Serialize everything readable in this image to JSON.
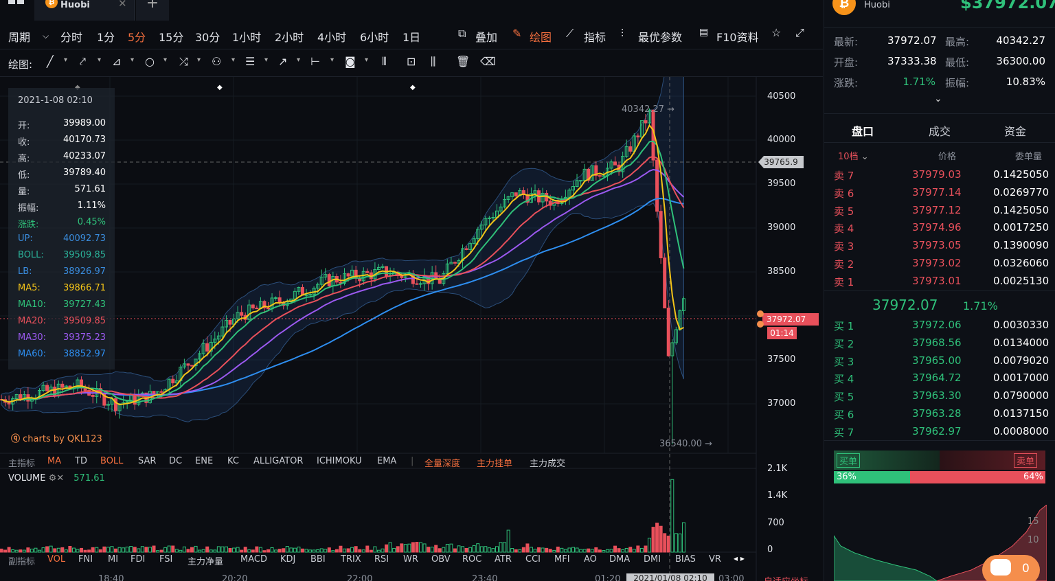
{
  "tabs": {
    "active": "Huobi",
    "coin_symbol": "₿"
  },
  "period": {
    "label": "周期",
    "items": [
      "分时",
      "1分",
      "5分",
      "15分",
      "30分",
      "1小时",
      "2小时",
      "4小时",
      "6小时",
      "1日"
    ],
    "active": "5分",
    "tools": [
      "叠加",
      "绘图",
      "指标",
      "最优参数",
      "F10资料"
    ]
  },
  "draw": {
    "label": "绘图:"
  },
  "info": {
    "datetime": "2021-1-08 02:10",
    "rows": [
      {
        "k": "开:",
        "v": "39989.00",
        "c": "#c9ccd3"
      },
      {
        "k": "收:",
        "v": "40170.73",
        "c": "#c9ccd3"
      },
      {
        "k": "高:",
        "v": "40233.07",
        "c": "#c9ccd3"
      },
      {
        "k": "低:",
        "v": "39789.40",
        "c": "#c9ccd3"
      },
      {
        "k": "量:",
        "v": "571.61",
        "c": "#c9ccd3"
      },
      {
        "k": "振幅:",
        "v": "1.11%",
        "c": "#c9ccd3"
      },
      {
        "k": "涨跌:",
        "v": "0.45%",
        "c": "#2fc17a"
      },
      {
        "k": "UP:",
        "v": "40092.73",
        "c": "#3a8dde"
      },
      {
        "k": "BOLL:",
        "v": "39509.85",
        "c": "#2bb39a"
      },
      {
        "k": "LB:",
        "v": "38926.97",
        "c": "#3a8dde"
      },
      {
        "k": "MA5:",
        "v": "39866.71",
        "c": "#f5c518"
      },
      {
        "k": "MA10:",
        "v": "39727.43",
        "c": "#2fc17a"
      },
      {
        "k": "MA20:",
        "v": "39509.85",
        "c": "#e8505b"
      },
      {
        "k": "MA30:",
        "v": "39375.23",
        "c": "#9b59f0"
      },
      {
        "k": "MA60:",
        "v": "38852.97",
        "c": "#2e8ef0"
      }
    ]
  },
  "price_axis": [
    "40500",
    "40000",
    "39500",
    "39000",
    "38500",
    "37500",
    "37000"
  ],
  "marks": {
    "high": "40342.27",
    "low": "36540.00",
    "crosshair": "39765.9",
    "last": "37972.07",
    "countdown": "01:14"
  },
  "watermark": "charts by QKL123",
  "main_indicators": {
    "label": "主指标",
    "items": [
      "MA",
      "TD",
      "BOLL",
      "SAR",
      "DC",
      "ENE",
      "KC",
      "ALLIGATOR",
      "ICHIMOKU",
      "EMA"
    ],
    "extra": [
      "全量深度",
      "主力挂单",
      "主力成交"
    ]
  },
  "volume": {
    "label": "VOLUME",
    "value": "571.61",
    "axis": [
      "2.1K",
      "1.4K",
      "700",
      "0"
    ]
  },
  "sub_indicators": {
    "label": "副指标",
    "items": [
      "VOL",
      "FNI",
      "MI",
      "FDI",
      "FSI",
      "主力净量",
      "MACD",
      "KDJ",
      "BBI",
      "TRIX",
      "RSI",
      "WR",
      "OBV",
      "ROC",
      "ATR",
      "CCI",
      "MFI",
      "AO",
      "DMA",
      "DMI",
      "BIAS",
      "VR"
    ]
  },
  "time_axis": [
    "18:40",
    "20:20",
    "22:00",
    "23:40",
    "01:20",
    "2021/01/08 02:10",
    "03:00"
  ],
  "right": {
    "exchange": "Huobi",
    "price": "$37972.07",
    "stats": [
      [
        "最新:",
        "37972.07",
        "最高:",
        "40342.27"
      ],
      [
        "开盘:",
        "37333.38",
        "最低:",
        "36300.00"
      ],
      [
        "涨跌:",
        "1.71%",
        "振幅:",
        "10.83%"
      ]
    ],
    "tabs": [
      "盘口",
      "成交",
      "资金"
    ],
    "depth_label": "10档",
    "col_price": "价格",
    "col_qty": "委单量",
    "asks": [
      [
        "卖 7",
        "37979.03",
        "0.1425050"
      ],
      [
        "卖 6",
        "37977.14",
        "0.0269770"
      ],
      [
        "卖 5",
        "37977.12",
        "0.1425050"
      ],
      [
        "卖 4",
        "37974.96",
        "0.0017250"
      ],
      [
        "卖 3",
        "37973.05",
        "0.1390090"
      ],
      [
        "卖 2",
        "37973.02",
        "0.0326060"
      ],
      [
        "卖 1",
        "37973.01",
        "0.0025130"
      ]
    ],
    "mid_price": "37972.07",
    "mid_change": "1.71%",
    "bids": [
      [
        "买 1",
        "37972.06",
        "0.0030330"
      ],
      [
        "买 2",
        "37968.56",
        "0.0134000"
      ],
      [
        "买 3",
        "37965.00",
        "0.0079020"
      ],
      [
        "买 4",
        "37964.72",
        "0.0017000"
      ],
      [
        "买 5",
        "37963.30",
        "0.0790000"
      ],
      [
        "买 6",
        "37963.28",
        "0.0137150"
      ],
      [
        "买 7",
        "37962.97",
        "0.0008000"
      ]
    ],
    "buy_label": "买单",
    "sell_label": "卖单",
    "buy_pct": "36%",
    "sell_pct": "64%",
    "buy_ratio": 0.36,
    "depth_axis": [
      "15",
      "10"
    ],
    "chat_count": "0",
    "bottom_partial": "自适应坐标"
  }
}
